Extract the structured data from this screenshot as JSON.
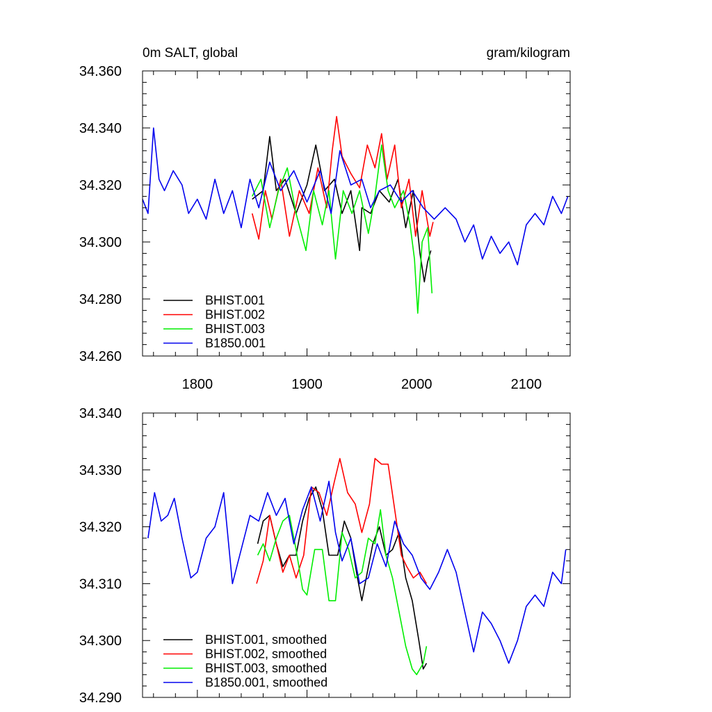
{
  "chart_data": [
    {
      "type": "line",
      "title_left": "0m SALT, global",
      "title_right": "gram/kilogram",
      "xlabel": "",
      "ylabel": "",
      "xlim": [
        1750,
        2140
      ],
      "ylim": [
        34.26,
        34.36
      ],
      "x_ticks": [
        1800,
        1900,
        2000,
        2100
      ],
      "x_tick_labels": [
        "1800",
        "1900",
        "2000",
        "2100"
      ],
      "y_ticks": [
        34.26,
        34.28,
        34.3,
        34.32,
        34.34,
        34.36
      ],
      "y_tick_labels": [
        "34.260",
        "34.280",
        "34.300",
        "34.320",
        "34.340",
        "34.360"
      ],
      "legend_position": "bottom-left",
      "series": [
        {
          "name": "BHIST.001",
          "color": "#000000",
          "x": [
            1850,
            1860,
            1866,
            1872,
            1880,
            1890,
            1900,
            1908,
            1916,
            1925,
            1932,
            1940,
            1948,
            1950,
            1958,
            1966,
            1975,
            1983,
            1990,
            1997,
            2003,
            2007,
            2010,
            2013
          ],
          "y": [
            34.315,
            34.318,
            34.337,
            34.318,
            34.322,
            34.31,
            34.32,
            34.334,
            34.318,
            34.322,
            34.31,
            34.318,
            34.297,
            34.312,
            34.31,
            34.318,
            34.314,
            34.322,
            34.305,
            34.318,
            34.296,
            34.286,
            34.293,
            34.297
          ]
        },
        {
          "name": "BHIST.002",
          "color": "#ff0000",
          "x": [
            1850,
            1856,
            1862,
            1868,
            1876,
            1884,
            1893,
            1902,
            1910,
            1918,
            1923,
            1927,
            1932,
            1940,
            1948,
            1955,
            1962,
            1968,
            1973,
            1980,
            1986,
            1993,
            1999,
            2005,
            2012,
            2015
          ],
          "y": [
            34.31,
            34.301,
            34.318,
            34.308,
            34.322,
            34.302,
            34.318,
            34.31,
            34.326,
            34.312,
            34.332,
            34.344,
            34.33,
            34.324,
            34.319,
            34.334,
            34.326,
            34.338,
            34.322,
            34.334,
            34.312,
            34.322,
            34.302,
            34.318,
            34.302,
            34.307
          ]
        },
        {
          "name": "BHIST.003",
          "color": "#00ee00",
          "x": [
            1850,
            1858,
            1866,
            1874,
            1882,
            1890,
            1899,
            1906,
            1914,
            1920,
            1926,
            1933,
            1941,
            1948,
            1956,
            1962,
            1968,
            1974,
            1980,
            1988,
            1994,
            1998,
            2001,
            2005,
            2010,
            2014
          ],
          "y": [
            34.316,
            34.322,
            34.305,
            34.318,
            34.326,
            34.31,
            34.297,
            34.318,
            34.306,
            34.318,
            34.294,
            34.318,
            34.31,
            34.318,
            34.303,
            34.316,
            34.334,
            34.318,
            34.312,
            34.318,
            34.306,
            34.294,
            34.275,
            34.3,
            34.305,
            34.282
          ]
        },
        {
          "name": "B1850.001",
          "color": "#0000ee",
          "x": [
            1750,
            1755,
            1760,
            1765,
            1770,
            1778,
            1786,
            1792,
            1800,
            1808,
            1816,
            1824,
            1832,
            1840,
            1848,
            1856,
            1866,
            1876,
            1888,
            1900,
            1912,
            1922,
            1930,
            1940,
            1950,
            1958,
            1966,
            1976,
            1986,
            1996,
            2006,
            2016,
            2026,
            2036,
            2044,
            2052,
            2060,
            2068,
            2076,
            2084,
            2092,
            2100,
            2108,
            2116,
            2124,
            2132,
            2138
          ],
          "y": [
            34.315,
            34.31,
            34.34,
            34.322,
            34.318,
            34.325,
            34.32,
            34.31,
            34.315,
            34.308,
            34.322,
            34.31,
            34.318,
            34.305,
            34.322,
            34.312,
            34.328,
            34.318,
            34.325,
            34.314,
            34.325,
            34.31,
            34.332,
            34.32,
            34.322,
            34.312,
            34.318,
            34.32,
            34.314,
            34.318,
            34.312,
            34.308,
            34.312,
            34.308,
            34.3,
            34.306,
            34.294,
            34.302,
            34.296,
            34.3,
            34.292,
            34.306,
            34.31,
            34.306,
            34.316,
            34.31,
            34.316
          ]
        }
      ]
    },
    {
      "type": "line",
      "title_left": "",
      "title_right": "",
      "xlabel": "",
      "ylabel": "",
      "xlim": [
        1750,
        2140
      ],
      "ylim": [
        34.29,
        34.34
      ],
      "x_ticks": [
        1800,
        1900,
        2000,
        2100
      ],
      "x_tick_labels": [],
      "y_ticks": [
        34.29,
        34.3,
        34.31,
        34.32,
        34.33,
        34.34
      ],
      "y_tick_labels": [
        "34.290",
        "34.300",
        "34.310",
        "34.320",
        "34.330",
        "34.340"
      ],
      "legend_position": "bottom-left",
      "series": [
        {
          "name": "BHIST.001, smoothed",
          "color": "#000000",
          "x": [
            1855,
            1860,
            1866,
            1872,
            1878,
            1884,
            1890,
            1896,
            1902,
            1908,
            1914,
            1920,
            1928,
            1934,
            1940,
            1946,
            1950,
            1955,
            1960,
            1966,
            1972,
            1978,
            1984,
            1990,
            1996,
            2002,
            2006,
            2009
          ],
          "y": [
            34.317,
            34.321,
            34.322,
            34.317,
            34.313,
            34.315,
            34.315,
            34.321,
            34.325,
            34.327,
            34.323,
            34.315,
            34.315,
            34.321,
            34.318,
            34.311,
            34.307,
            34.312,
            34.317,
            34.32,
            34.315,
            34.316,
            34.319,
            34.311,
            34.307,
            34.3,
            34.295,
            34.296
          ]
        },
        {
          "name": "BHIST.002, smoothed",
          "color": "#ff0000",
          "x": [
            1854,
            1860,
            1866,
            1872,
            1878,
            1884,
            1890,
            1897,
            1904,
            1911,
            1918,
            1925,
            1930,
            1937,
            1944,
            1950,
            1957,
            1962,
            1968,
            1974,
            1980,
            1986,
            1991,
            1997,
            2003,
            2009
          ],
          "y": [
            34.31,
            34.314,
            34.322,
            34.317,
            34.312,
            34.315,
            34.311,
            34.315,
            34.327,
            34.326,
            34.322,
            34.328,
            34.332,
            34.326,
            34.324,
            34.319,
            34.324,
            34.332,
            34.331,
            34.331,
            34.323,
            34.315,
            34.313,
            34.311,
            34.312,
            34.31
          ]
        },
        {
          "name": "BHIST.003, smoothed",
          "color": "#00ee00",
          "x": [
            1855,
            1860,
            1866,
            1872,
            1878,
            1884,
            1890,
            1896,
            1900,
            1907,
            1914,
            1920,
            1926,
            1932,
            1938,
            1944,
            1950,
            1956,
            1962,
            1967,
            1972,
            1978,
            1984,
            1990,
            1996,
            2000,
            2006,
            2009
          ],
          "y": [
            34.315,
            34.317,
            34.314,
            34.318,
            34.321,
            34.322,
            34.316,
            34.309,
            34.308,
            34.316,
            34.316,
            34.307,
            34.307,
            34.319,
            34.316,
            34.311,
            34.312,
            34.318,
            34.317,
            34.323,
            34.315,
            34.311,
            34.305,
            34.299,
            34.295,
            34.294,
            34.296,
            34.299
          ]
        },
        {
          "name": "B1850.001, smoothed",
          "color": "#0000ee",
          "x": [
            1755,
            1761,
            1767,
            1773,
            1779,
            1786,
            1794,
            1800,
            1808,
            1816,
            1824,
            1832,
            1840,
            1848,
            1856,
            1864,
            1872,
            1880,
            1888,
            1896,
            1904,
            1912,
            1920,
            1926,
            1932,
            1940,
            1948,
            1956,
            1964,
            1972,
            1980,
            1988,
            1996,
            2004,
            2012,
            2020,
            2028,
            2036,
            2044,
            2052,
            2060,
            2068,
            2076,
            2084,
            2092,
            2100,
            2108,
            2116,
            2124,
            2132,
            2136
          ],
          "y": [
            34.318,
            34.326,
            34.321,
            34.322,
            34.325,
            34.318,
            34.311,
            34.312,
            34.318,
            34.32,
            34.326,
            34.31,
            34.316,
            34.322,
            34.321,
            34.326,
            34.322,
            34.325,
            34.317,
            34.323,
            34.327,
            34.321,
            34.328,
            34.319,
            34.314,
            34.318,
            34.31,
            34.311,
            34.317,
            34.313,
            34.321,
            34.317,
            34.315,
            34.311,
            34.309,
            34.312,
            34.316,
            34.312,
            34.305,
            34.298,
            34.305,
            34.303,
            34.3,
            34.296,
            34.3,
            34.306,
            34.308,
            34.306,
            34.312,
            34.31,
            34.316
          ]
        }
      ]
    }
  ]
}
